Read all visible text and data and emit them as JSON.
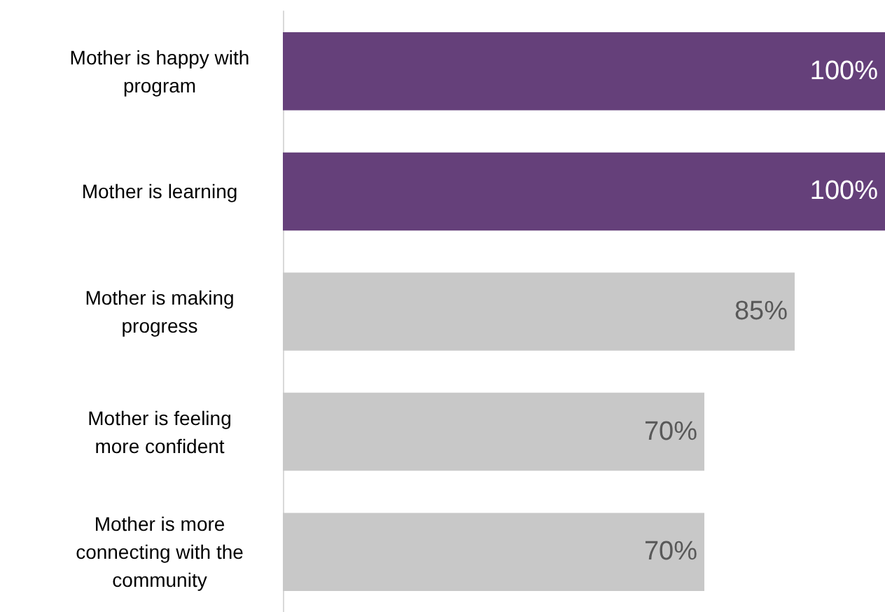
{
  "chart_data": {
    "type": "bar",
    "orientation": "horizontal",
    "categories": [
      "Mother is happy with program",
      "Mother is learning",
      "Mother is making progress",
      "Mother is feeling more confident",
      "Mother is more connecting with the community"
    ],
    "values": [
      100,
      100,
      85,
      70,
      70
    ],
    "colors": [
      "#65407a",
      "#65407a",
      "#c8c8c8",
      "#c8c8c8",
      "#c8c8c8"
    ],
    "value_labels": [
      "100%",
      "100%",
      "85%",
      "70%",
      "70%"
    ],
    "xlim": [
      0,
      100
    ],
    "tick_labels": "y"
  }
}
